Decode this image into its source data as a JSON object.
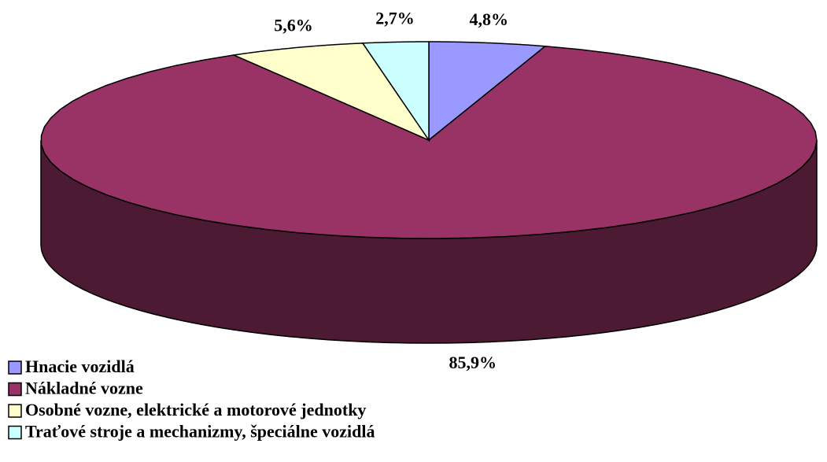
{
  "chart_data": {
    "type": "pie3d",
    "categories": [
      "Hnacie vozidlá",
      "Nákladné vozne",
      "Osobné vozne, elektrické a motorové jednotky",
      "Traťové stroje a mechanizmy, špeciálne vozidlá"
    ],
    "values": [
      4.8,
      85.9,
      5.6,
      2.7
    ],
    "value_labels": [
      "4,8%",
      "85,9%",
      "5,6%",
      "2,7%"
    ],
    "colors": [
      "#9999ff",
      "#993366",
      "#ffffcc",
      "#ccffff"
    ]
  }
}
